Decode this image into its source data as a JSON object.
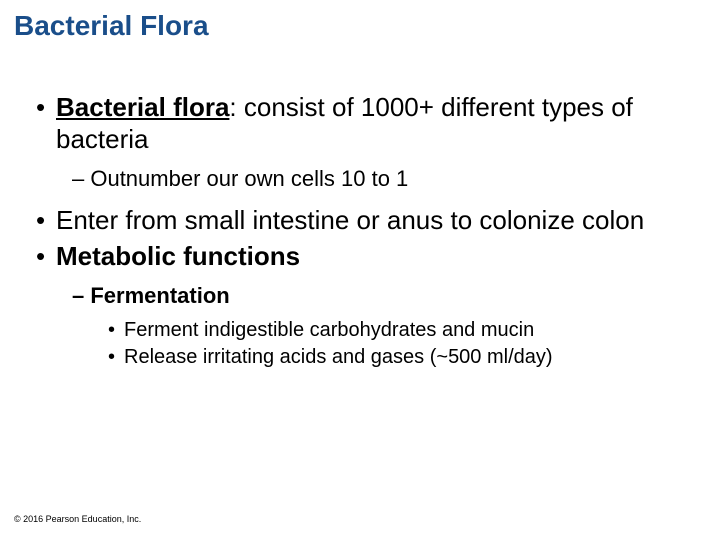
{
  "colors": {
    "title_color": "#1a4e8a",
    "body_color": "#000000",
    "background": "#ffffff"
  },
  "typography": {
    "title_fontsize": 28,
    "l1_fontsize": 26,
    "l2_fontsize": 22,
    "l3_fontsize": 20,
    "copyright_fontsize": 9,
    "font_family": "Arial"
  },
  "title": "Bacterial Flora",
  "bullets": {
    "b1_term": "Bacterial flora",
    "b1_rest": ": consist of 1000+ different types of bacteria",
    "b1_sub1": "– Outnumber our own cells 10 to 1",
    "b2": "Enter from small intestine or anus to colonize colon",
    "b3": "Metabolic functions",
    "b3_sub1": "– Fermentation",
    "b3_sub1_a": "Ferment indigestible carbohydrates and mucin",
    "b3_sub1_b": "Release irritating acids and gases (~500 ml/day)"
  },
  "copyright": "© 2016 Pearson Education, Inc."
}
